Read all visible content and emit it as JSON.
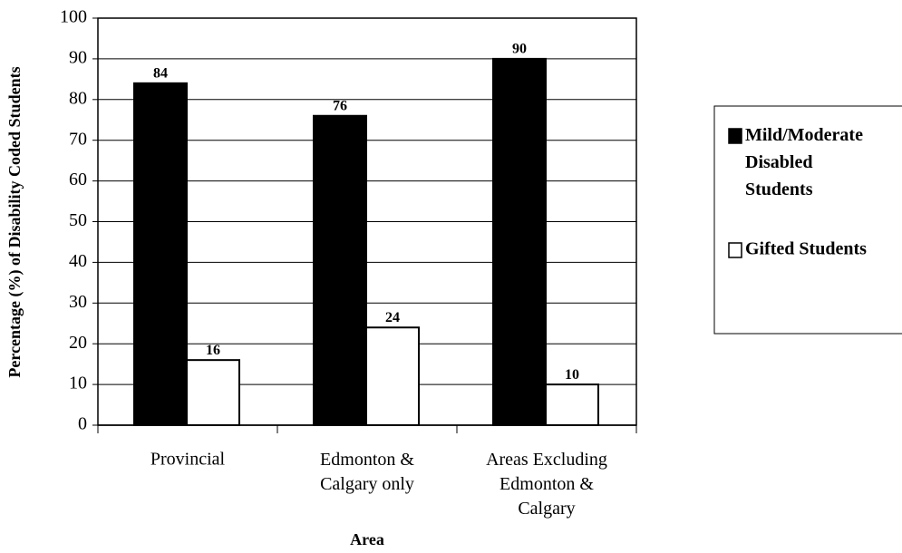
{
  "chart_data": {
    "type": "bar",
    "y_label": "Percentage (%) of Disability Coded Students",
    "x_label": "Area",
    "categories": [
      "Provincial",
      "Edmonton &\nCalgary only",
      "Areas Excluding\nEdmonton &\nCalgary"
    ],
    "series": [
      {
        "name": "Mild/Moderate\nDisabled\nStudents",
        "color": "#000000",
        "values": [
          84,
          76,
          90
        ]
      },
      {
        "name": "Gifted Students",
        "color": "#ffffff",
        "values": [
          16,
          24,
          10
        ]
      }
    ],
    "ylim": [
      0,
      100
    ],
    "yticks": [
      0,
      10,
      20,
      30,
      40,
      50,
      60,
      70,
      80,
      90,
      100
    ],
    "grid": true,
    "legend": "right"
  }
}
